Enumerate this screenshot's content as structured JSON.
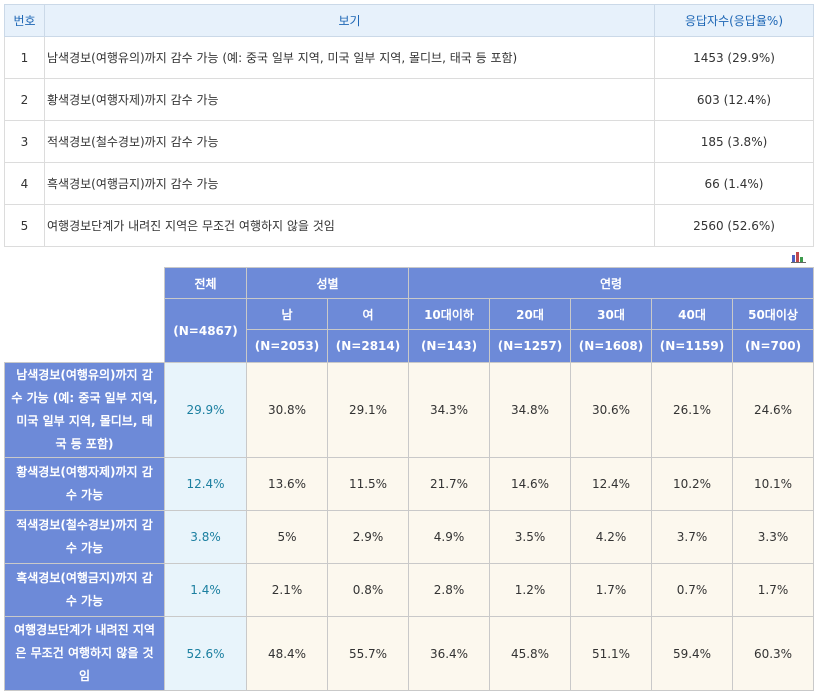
{
  "chart_data": [
    {
      "type": "table",
      "columns": [
        "번호",
        "보기",
        "응답자수(응답율%)"
      ],
      "rows": [
        {
          "no": "1",
          "option": "남색경보(여행유의)까지 감수 가능 (예: 중국 일부 지역, 미국 일부 지역, 몰디브, 태국 등 포함)",
          "count": "1453 (29.9%)"
        },
        {
          "no": "2",
          "option": "황색경보(여행자제)까지 감수 가능",
          "count": "603 (12.4%)"
        },
        {
          "no": "3",
          "option": "적색경보(철수경보)까지 감수 가능",
          "count": "185 (3.8%)"
        },
        {
          "no": "4",
          "option": "흑색경보(여행금지)까지 감수 가능",
          "count": "66 (1.4%)"
        },
        {
          "no": "5",
          "option": "여행경보단계가 내려진 지역은 무조건 여행하지 않을 것임",
          "count": "2560 (52.6%)"
        }
      ]
    },
    {
      "type": "table",
      "total": {
        "label": "전체",
        "n": "(N=4867)"
      },
      "groups": [
        {
          "label": "성별",
          "columns": [
            {
              "label": "남",
              "n": "(N=2053)"
            },
            {
              "label": "여",
              "n": "(N=2814)"
            }
          ]
        },
        {
          "label": "연령",
          "columns": [
            {
              "label": "10대이하",
              "n": "(N=143)"
            },
            {
              "label": "20대",
              "n": "(N=1257)"
            },
            {
              "label": "30대",
              "n": "(N=1608)"
            },
            {
              "label": "40대",
              "n": "(N=1159)"
            },
            {
              "label": "50대이상",
              "n": "(N=700)"
            }
          ]
        }
      ],
      "rows": [
        {
          "label": "남색경보(여행유의)까지 감수 가능 (예: 중국 일부 지역, 미국 일부 지역, 몰디브, 태국 등 포함)",
          "total": "29.9%",
          "values": [
            "30.8%",
            "29.1%",
            "34.3%",
            "34.8%",
            "30.6%",
            "26.1%",
            "24.6%"
          ]
        },
        {
          "label": "황색경보(여행자제)까지 감수 가능",
          "total": "12.4%",
          "values": [
            "13.6%",
            "11.5%",
            "21.7%",
            "14.6%",
            "12.4%",
            "10.2%",
            "10.1%"
          ]
        },
        {
          "label": "적색경보(철수경보)까지 감수 가능",
          "total": "3.8%",
          "values": [
            "5%",
            "2.9%",
            "4.9%",
            "3.5%",
            "4.2%",
            "3.7%",
            "3.3%"
          ]
        },
        {
          "label": "흑색경보(여행금지)까지 감수 가능",
          "total": "1.4%",
          "values": [
            "2.1%",
            "0.8%",
            "2.8%",
            "1.2%",
            "1.7%",
            "0.7%",
            "1.7%"
          ]
        },
        {
          "label": "여행경보단계가 내려진 지역은 무조건 여행하지 않을 것임",
          "total": "52.6%",
          "values": [
            "48.4%",
            "55.7%",
            "36.4%",
            "45.8%",
            "51.1%",
            "59.4%",
            "60.3%"
          ]
        }
      ]
    }
  ],
  "icons": {
    "chart_toggle": "bar-chart-icon"
  },
  "colors": {
    "summary_header_bg": "#e7f1fb",
    "summary_header_text": "#1d66b5",
    "crosstab_header_bg": "#6d8ad8",
    "total_cell_bg": "#e8f4fb",
    "total_cell_text": "#1b7fa0",
    "value_cell_bg": "#fcf8ee"
  }
}
